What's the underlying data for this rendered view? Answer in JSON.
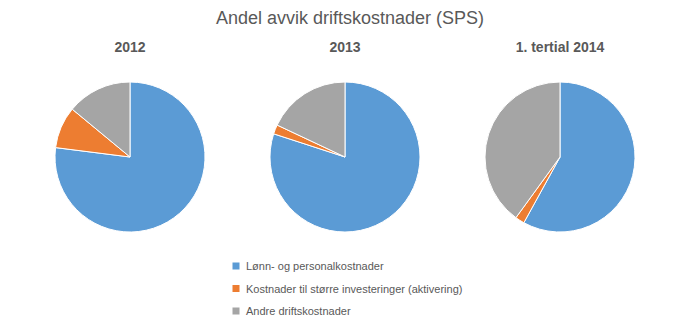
{
  "chart_data": {
    "type": "pie",
    "title": "Andel avvik driftskostnader (SPS)",
    "categories": [
      "2012",
      "2013",
      "1. tertial 2014"
    ],
    "series": [
      {
        "name": "Lønn- og personalkostnader",
        "color": "#5b9bd5",
        "values": [
          77,
          80,
          58
        ]
      },
      {
        "name": "Kostnader til større investeringer (aktivering)",
        "color": "#ed7d31",
        "values": [
          9,
          2,
          2
        ]
      },
      {
        "name": "Andre driftskostnader",
        "color": "#a5a5a5",
        "values": [
          14,
          18,
          40
        ]
      }
    ],
    "legend": "bottom"
  }
}
